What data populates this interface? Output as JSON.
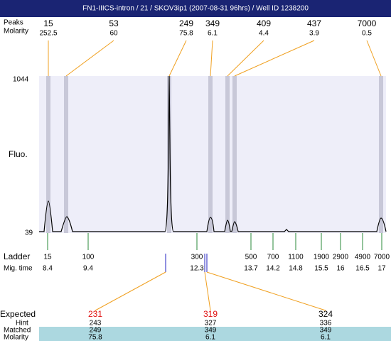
{
  "title": "FN1-IIICS-intron / 21 / SKOV3ip1 (2007-08-31 96hrs) / Well ID 1238200",
  "peaks": {
    "size_label": "Peaks",
    "molarity_label": "Molarity",
    "items": [
      {
        "size": 15,
        "molarity": 252.5
      },
      {
        "size": 53,
        "molarity": 60
      },
      {
        "size": 249,
        "molarity": 75.8
      },
      {
        "size": 349,
        "molarity": 6.1
      },
      {
        "size": 409,
        "molarity": 4.4
      },
      {
        "size": 437,
        "molarity": 3.9
      },
      {
        "size": 7000,
        "molarity": 0.5
      }
    ]
  },
  "plot": {
    "y_label": "Fluo.",
    "y_max": 1044,
    "y_min": 39
  },
  "ladder": {
    "size_label": "Ladder",
    "time_label": "Mig. time",
    "items": [
      {
        "size": 15,
        "time": 8.4
      },
      {
        "size": 100,
        "time": 9.4
      },
      {
        "size": 300,
        "time": 12.3
      },
      {
        "size": 500,
        "time": 13.7
      },
      {
        "size": 700,
        "time": 14.2
      },
      {
        "size": 1100,
        "time": 14.8
      },
      {
        "size": 1900,
        "time": 15.5
      },
      {
        "size": 2900,
        "time": 16
      },
      {
        "size": 4900,
        "time": 16.5
      },
      {
        "size": 7000,
        "time": 17
      }
    ]
  },
  "matches": {
    "expected_label": "Expected",
    "hint_label": "Hint",
    "matched_label": "Matched",
    "molarity_label": "Molarity",
    "columns": [
      {
        "expected": 231,
        "expected_color": "#e01010",
        "hint": 243,
        "matched": 249,
        "molarity": 75.8
      },
      {
        "expected": 319,
        "expected_color": "#e01010",
        "hint": 327,
        "matched": 349,
        "molarity": 6.1
      },
      {
        "expected": 324,
        "expected_color": "#000000",
        "hint": 336,
        "matched": 349,
        "molarity": 6.1
      }
    ]
  }
}
